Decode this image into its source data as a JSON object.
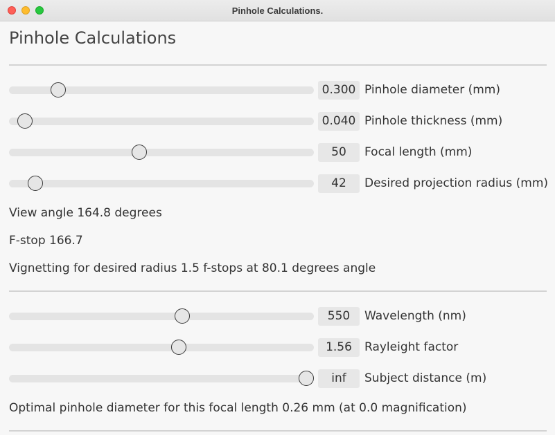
{
  "window": {
    "title": "Pinhole Calculations."
  },
  "page_title": "Pinhole Calculations",
  "sliders_top": [
    {
      "value": "0.300",
      "label": "Pinhole diameter (mm)",
      "position": 0.162
    },
    {
      "value": "0.040",
      "label": "Pinhole thickness (mm)",
      "position": 0.053
    },
    {
      "value": "50",
      "label": "Focal length (mm)",
      "position": 0.428
    },
    {
      "value": "42",
      "label": "Desired projection radius (mm)",
      "position": 0.086
    }
  ],
  "results": {
    "view_angle": "View angle 164.8 degrees",
    "f_stop": "F-stop 166.7",
    "vignetting": "Vignetting for desired radius 1.5 f-stops at 80.1 degrees angle"
  },
  "sliders_bottom": [
    {
      "value": "550",
      "label": "Wavelength (nm)",
      "position": 0.568
    },
    {
      "value": "1.56",
      "label": "Rayleight factor",
      "position": 0.557
    },
    {
      "value": "inf",
      "label": "Subject distance (m)",
      "position": 0.975
    }
  ],
  "optimal": "Optimal pinhole diameter for this focal length 0.26 mm (at 0.0 magnification)"
}
